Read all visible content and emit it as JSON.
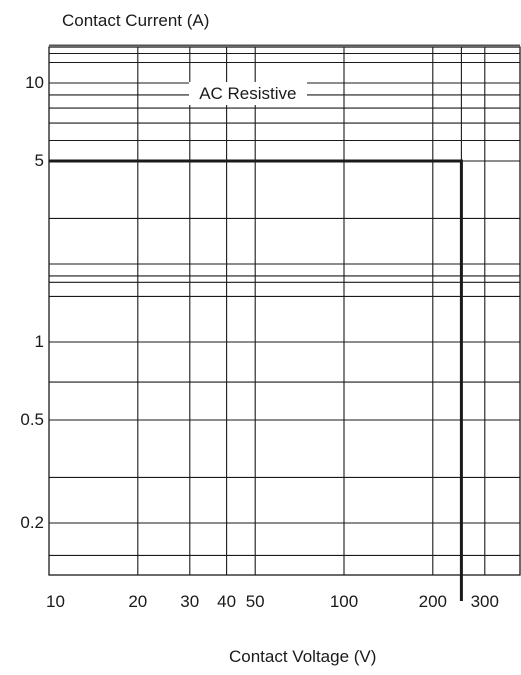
{
  "chart_data": {
    "type": "line",
    "title": "",
    "ylabel": "Contact Current (A)",
    "xlabel": "Contact Voltage (V)",
    "xscale": "log",
    "yscale": "log",
    "xlim": [
      10,
      400
    ],
    "ylim": [
      0.1,
      15
    ],
    "grid": true,
    "x_ticks": [
      {
        "value": 10,
        "label": "10"
      },
      {
        "value": 20,
        "label": "20"
      },
      {
        "value": 30,
        "label": "30"
      },
      {
        "value": 40,
        "label": "40"
      },
      {
        "value": 50,
        "label": "50"
      },
      {
        "value": 100,
        "label": "100"
      },
      {
        "value": 200,
        "label": "200"
      },
      {
        "value": 300,
        "label": "300"
      }
    ],
    "y_ticks": [
      {
        "value": 10,
        "label": "10"
      },
      {
        "value": 5,
        "label": "5"
      },
      {
        "value": 1,
        "label": "1"
      },
      {
        "value": 0.5,
        "label": "0.5"
      },
      {
        "value": 0.2,
        "label": "0.2"
      }
    ],
    "x_grid": [
      20,
      30,
      40,
      50,
      100,
      200,
      250,
      300
    ],
    "y_grid": [
      0.15,
      0.2,
      0.3,
      0.5,
      0.7,
      1,
      1.5,
      1.7,
      1.8,
      2,
      3,
      5,
      6,
      7,
      8,
      9,
      10,
      12,
      13,
      14
    ],
    "series": [
      {
        "name": "AC Resistive",
        "x": [
          10,
          250,
          250
        ],
        "y": [
          5,
          5,
          0.1
        ]
      }
    ],
    "annotations": [
      {
        "text": "AC Resistive",
        "x": 50,
        "y": 9
      }
    ]
  }
}
